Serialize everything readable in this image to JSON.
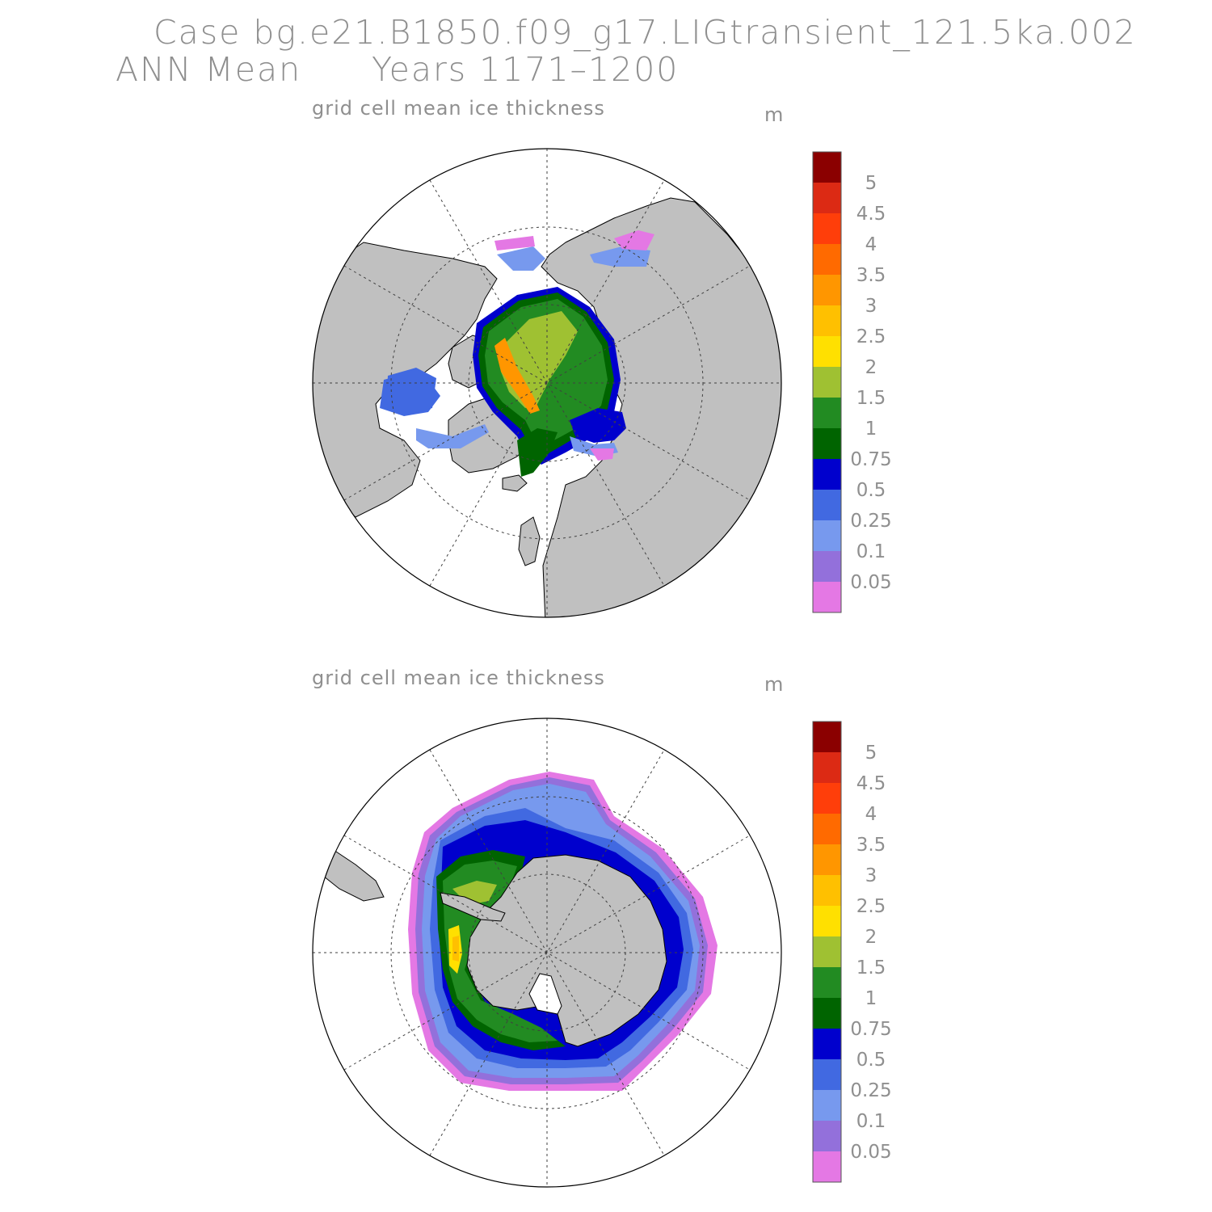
{
  "header": {
    "case_title": "Case bg.e21.B1850.f09_g17.LIGtransient_121.5ka.002",
    "period": "ANN Mean",
    "years": "Years 1171–1200"
  },
  "panels": [
    {
      "id": "north",
      "title": "grid cell mean ice thickness",
      "units": "m"
    },
    {
      "id": "south",
      "title": "grid cell mean ice thickness",
      "units": "m"
    }
  ],
  "colors": {
    "land": "#c0c0c0",
    "ocean": "#ffffff",
    "grid": "#404040"
  },
  "colorbar": {
    "labels": [
      "5",
      "4.5",
      "4",
      "3.5",
      "3",
      "2.5",
      "2",
      "1.5",
      "1",
      "0.75",
      "0.5",
      "0.25",
      "0.1",
      "0.05"
    ],
    "colors": [
      "#8b0000",
      "#dc2a14",
      "#ff3e0a",
      "#ff6a00",
      "#ff9600",
      "#ffc000",
      "#ffe000",
      "#9fc132",
      "#228b22",
      "#006400",
      "#0000cd",
      "#4169e1",
      "#7799ee",
      "#9370db",
      "#e478e4"
    ]
  }
}
